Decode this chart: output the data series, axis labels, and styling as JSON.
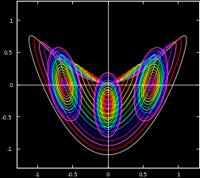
{
  "background_color": "#000000",
  "axes_color": "#ffffff",
  "tick_color": "#ffffff",
  "xlim": [
    -1.3,
    1.3
  ],
  "ylim": [
    -1.3,
    1.3
  ],
  "xticks": [
    -1,
    -0.5,
    0,
    0.5,
    1
  ],
  "yticks": [
    -1,
    -0.5,
    0,
    0.5,
    1
  ],
  "figsize": [
    2.53,
    2.26
  ],
  "dpi": 100,
  "curve_colors": [
    "#c0c0c0",
    "#ff0000",
    "#ff44ff",
    "#aa00ff",
    "#0000ff",
    "#0088ff",
    "#00ffff",
    "#00cc00",
    "#88ff00",
    "#ffff00",
    "#ffaa00",
    "#ff6600",
    "#ff2200",
    "#ff00aa",
    "#cc00cc"
  ],
  "n_outer": 15,
  "n_lobe": 13
}
